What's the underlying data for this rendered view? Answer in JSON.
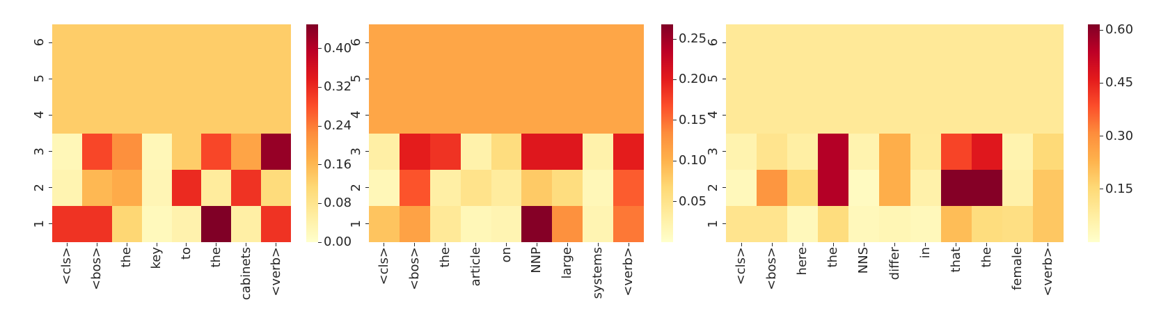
{
  "figure": {
    "background": "#ffffff",
    "text_color": "#262626"
  },
  "colormap": {
    "name": "YlOrRd",
    "stops": [
      "#ffffcc",
      "#ffeda0",
      "#fed976",
      "#feb24c",
      "#fd8d3c",
      "#fc4e2a",
      "#e31a1c",
      "#bd0026",
      "#800026"
    ]
  },
  "chart_data": [
    {
      "type": "heatmap",
      "x_labels": [
        "<cls>",
        "<bos>",
        "the",
        "key",
        "to",
        "the",
        "cabinets",
        "<verb>"
      ],
      "y_labels": [
        "6",
        "5",
        "4",
        "3",
        "2",
        "1"
      ],
      "row_order": "top_to_bottom",
      "tick_rotation_degrees": 90,
      "vmin": 0.0,
      "vmax": 0.45,
      "colorbar_ticks": [
        0.0,
        0.08,
        0.16,
        0.24,
        0.32,
        0.4
      ],
      "colorbar_tick_labels": [
        "0.00",
        "0.08",
        "0.16",
        "0.24",
        "0.32",
        "0.40"
      ],
      "rows": [
        [
          0.13,
          0.13,
          0.13,
          0.13,
          0.13,
          0.13,
          0.13,
          0.13
        ],
        [
          0.13,
          0.13,
          0.13,
          0.13,
          0.13,
          0.13,
          0.13,
          0.13
        ],
        [
          0.13,
          0.13,
          0.13,
          0.13,
          0.13,
          0.13,
          0.13,
          0.13
        ],
        [
          0.025,
          0.29,
          0.22,
          0.025,
          0.13,
          0.29,
          0.19,
          0.43
        ],
        [
          0.035,
          0.16,
          0.18,
          0.03,
          0.32,
          0.06,
          0.31,
          0.105
        ],
        [
          0.31,
          0.31,
          0.115,
          0.02,
          0.04,
          0.45,
          0.05,
          0.31
        ]
      ]
    },
    {
      "type": "heatmap",
      "x_labels": [
        "<cls>",
        "<bos>",
        "the",
        "article",
        "on",
        "NNP",
        "large",
        "systems",
        "<verb>"
      ],
      "y_labels": [
        "6",
        "5",
        "4",
        "3",
        "2",
        "1"
      ],
      "row_order": "top_to_bottom",
      "tick_rotation_degrees": 90,
      "vmin": 0.0,
      "vmax": 0.268,
      "colorbar_ticks": [
        0.05,
        0.1,
        0.15,
        0.2,
        0.25
      ],
      "colorbar_tick_labels": [
        "0.05",
        "0.10",
        "0.15",
        "0.20",
        "0.25"
      ],
      "rows": [
        [
          0.111,
          0.111,
          0.111,
          0.111,
          0.111,
          0.111,
          0.111,
          0.111,
          0.111
        ],
        [
          0.111,
          0.111,
          0.111,
          0.111,
          0.111,
          0.111,
          0.111,
          0.111,
          0.111
        ],
        [
          0.111,
          0.111,
          0.111,
          0.111,
          0.111,
          0.111,
          0.111,
          0.111,
          0.111
        ],
        [
          0.03,
          0.2,
          0.185,
          0.025,
          0.06,
          0.205,
          0.205,
          0.025,
          0.2
        ],
        [
          0.015,
          0.165,
          0.03,
          0.05,
          0.035,
          0.08,
          0.06,
          0.015,
          0.16
        ],
        [
          0.085,
          0.115,
          0.04,
          0.015,
          0.02,
          0.265,
          0.13,
          0.02,
          0.145
        ]
      ]
    },
    {
      "type": "heatmap",
      "x_labels": [
        "<cls>",
        "<bos>",
        "here",
        "the",
        "NNS",
        "differ",
        "in",
        "that",
        "the",
        "female",
        "<verb>"
      ],
      "y_labels": [
        "6",
        "5",
        "4",
        "3",
        "2",
        "1"
      ],
      "row_order": "top_to_bottom",
      "tick_rotation_degrees": 90,
      "vmin": 0.0,
      "vmax": 0.616,
      "colorbar_ticks": [
        0.15,
        0.3,
        0.45,
        0.6
      ],
      "colorbar_tick_labels": [
        "0.15",
        "0.30",
        "0.45",
        "0.60"
      ],
      "rows": [
        [
          0.091,
          0.091,
          0.091,
          0.091,
          0.091,
          0.091,
          0.091,
          0.091,
          0.091,
          0.091,
          0.091
        ],
        [
          0.091,
          0.091,
          0.091,
          0.091,
          0.091,
          0.091,
          0.091,
          0.091,
          0.091,
          0.091,
          0.091
        ],
        [
          0.091,
          0.091,
          0.091,
          0.091,
          0.091,
          0.091,
          0.091,
          0.091,
          0.091,
          0.091,
          0.091
        ],
        [
          0.05,
          0.11,
          0.07,
          0.55,
          0.05,
          0.24,
          0.09,
          0.4,
          0.47,
          0.05,
          0.15
        ],
        [
          0.03,
          0.29,
          0.15,
          0.55,
          0.02,
          0.24,
          0.06,
          0.61,
          0.61,
          0.06,
          0.19
        ],
        [
          0.11,
          0.11,
          0.03,
          0.14,
          0.03,
          0.04,
          0.03,
          0.21,
          0.14,
          0.13,
          0.19
        ]
      ]
    }
  ]
}
